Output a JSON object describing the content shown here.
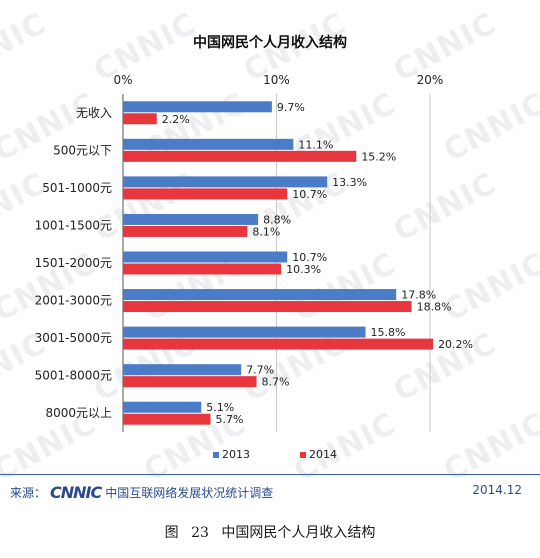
{
  "chart_data": {
    "type": "bar",
    "orientation": "horizontal",
    "title": "中国网民个人月收入结构",
    "categories": [
      "无收入",
      "500元以下",
      "501-1000元",
      "1001-1500元",
      "1501-2000元",
      "2001-3000元",
      "3001-5000元",
      "5001-8000元",
      "8000元以上"
    ],
    "series": [
      {
        "name": "2013",
        "color": "#4a7cc7",
        "values": [
          9.7,
          11.1,
          13.3,
          8.8,
          10.7,
          17.8,
          15.8,
          7.7,
          5.1
        ],
        "labels": [
          "9.7%",
          "11.1%",
          "13.3%",
          "8.8%",
          "10.7%",
          "17.8%",
          "15.8%",
          "7.7%",
          "5.1%"
        ]
      },
      {
        "name": "2014",
        "color": "#e8363f",
        "values": [
          2.2,
          15.2,
          10.7,
          8.1,
          10.3,
          18.8,
          20.2,
          8.7,
          5.7
        ],
        "labels": [
          "2.2%",
          "15.2%",
          "10.7%",
          "8.1%",
          "10.3%",
          "18.8%",
          "20.2%",
          "8.7%",
          "5.7%"
        ]
      }
    ],
    "xlim": [
      0,
      20
    ],
    "ticks": [
      0,
      10,
      20
    ],
    "tick_labels": [
      "0%",
      "10%",
      "20%"
    ],
    "xlabel": "",
    "ylabel": "",
    "grid": true,
    "legend_position": "bottom"
  },
  "footer": {
    "source_label": "来源：",
    "logo_text": "CNNIC",
    "source_org": "中国互联网络发展状况统计调查",
    "date": "2014.12"
  },
  "caption": {
    "figure_label": "图",
    "figure_number": "23",
    "figure_title": "中国网民个人月收入结构"
  },
  "watermark": "CNNIC"
}
